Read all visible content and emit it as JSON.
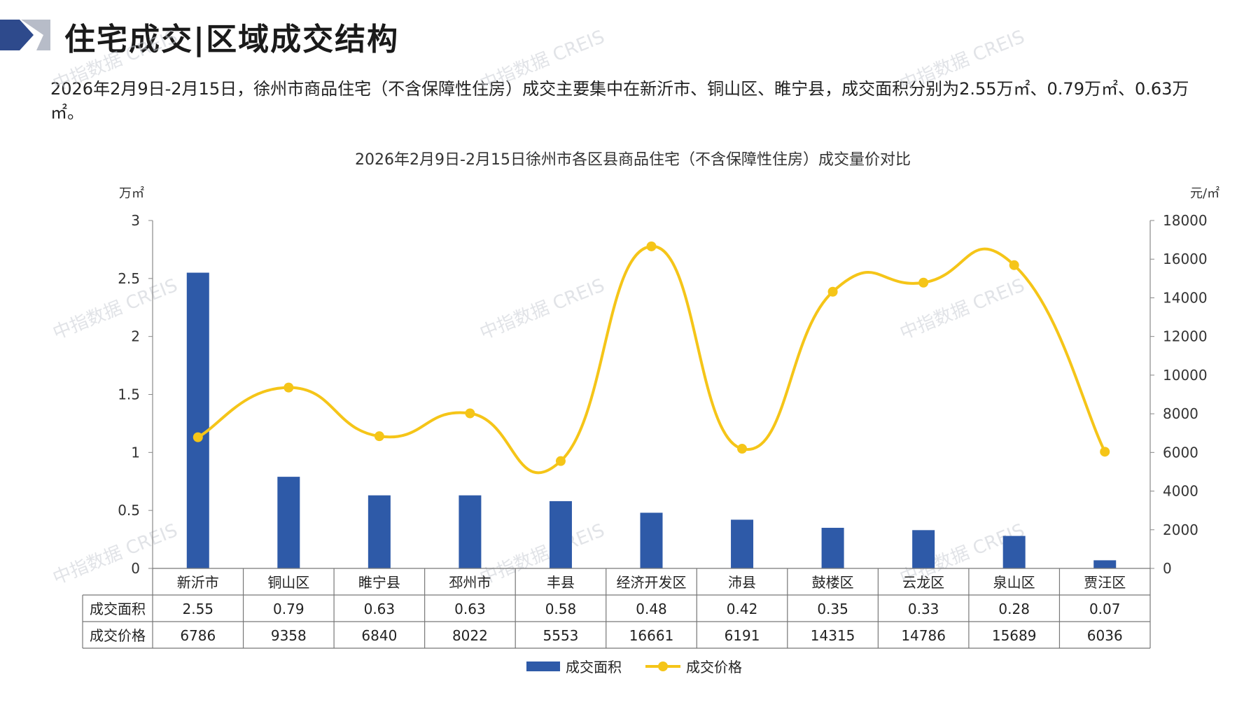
{
  "header": {
    "title": "住宅成交|区域成交结构"
  },
  "summary": "2026年2月9日-2月15日，徐州市商品住宅（不含保障性住房）成交主要集中在新沂市、铜山区、睢宁县，成交面积分别为2.55万㎡、0.79万㎡、0.63万㎡。",
  "colors": {
    "bar": "#2E5AA8",
    "line": "#F5C518",
    "logo_dark": "#2E4A8C",
    "logo_light": "#B7BCC8"
  },
  "chart_data": {
    "type": "bar",
    "title": "2026年2月9日-2月15日徐州市各区县商品住宅（不含保障性住房）成交量价对比",
    "categories": [
      "新沂市",
      "铜山区",
      "睢宁县",
      "邳州市",
      "丰县",
      "经济开发区",
      "沛县",
      "鼓楼区",
      "云龙区",
      "泉山区",
      "贾汪区"
    ],
    "series": [
      {
        "name": "成交面积",
        "type": "bar",
        "axis": "left",
        "values": [
          2.55,
          0.79,
          0.63,
          0.63,
          0.58,
          0.48,
          0.42,
          0.35,
          0.33,
          0.28,
          0.07
        ],
        "display": [
          "2.55",
          "0.79",
          "0.63",
          "0.63",
          "0.58",
          "0.48",
          "0.42",
          "0.35",
          "0.33",
          "0.28",
          "0.07"
        ]
      },
      {
        "name": "成交价格",
        "type": "line",
        "axis": "right",
        "smooth": true,
        "values": [
          6786,
          9358,
          6840,
          8022,
          5553,
          16661,
          6191,
          14315,
          14786,
          15689,
          6036
        ],
        "display": [
          "6786",
          "9358",
          "6840",
          "8022",
          "5553",
          "16661",
          "6191",
          "14315",
          "14786",
          "15689",
          "6036"
        ]
      }
    ],
    "y_left": {
      "unit": "万㎡",
      "ylim": [
        0,
        3
      ],
      "ticks": [
        0,
        0.5,
        1,
        1.5,
        2,
        2.5,
        3
      ],
      "tick_labels": [
        "0",
        "0.5",
        "1",
        "1.5",
        "2",
        "2.5",
        "3"
      ]
    },
    "y_right": {
      "unit": "元/㎡",
      "ylim": [
        0,
        18000
      ],
      "ticks": [
        0,
        2000,
        4000,
        6000,
        8000,
        10000,
        12000,
        14000,
        16000,
        18000
      ],
      "tick_labels": [
        "0",
        "2000",
        "4000",
        "6000",
        "8000",
        "10000",
        "12000",
        "14000",
        "16000",
        "18000"
      ]
    },
    "data_table": true,
    "legend_position": "bottom",
    "grid": false
  },
  "watermark": "中指数据 CREIS"
}
